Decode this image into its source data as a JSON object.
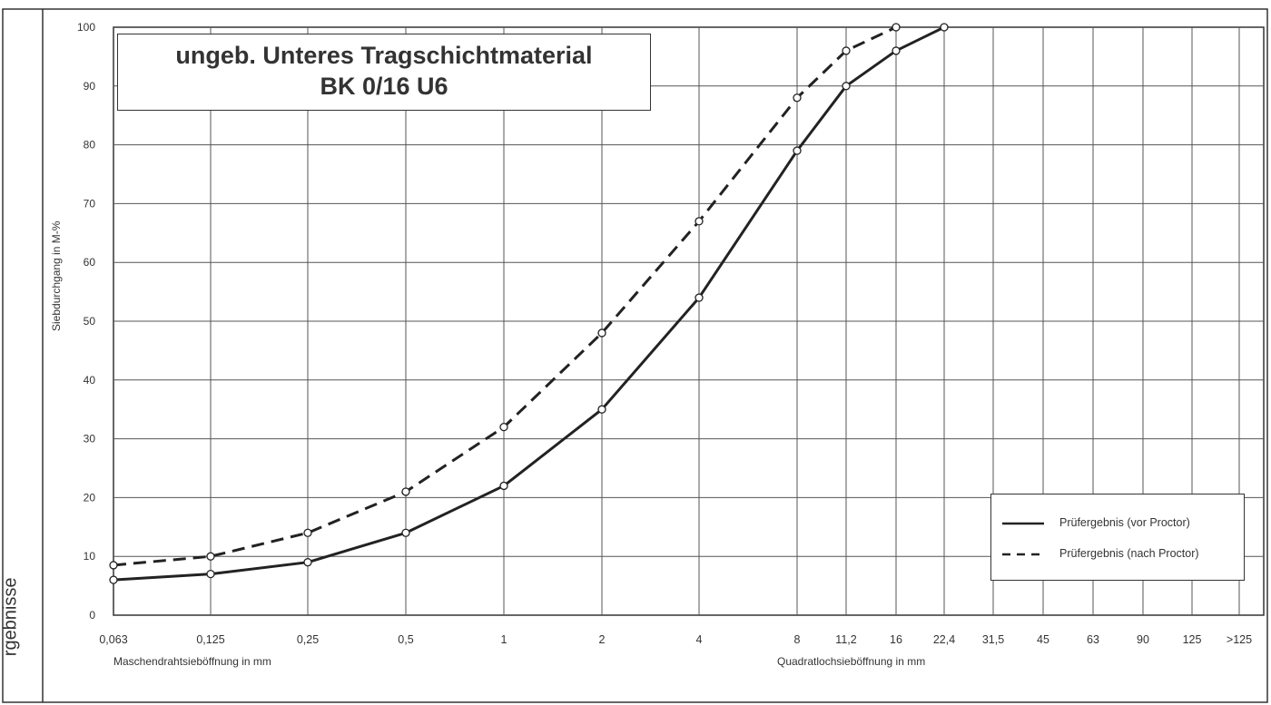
{
  "side_label": "rgebnisse",
  "chart_data": {
    "type": "line",
    "title": "ungeb. Unteres Tragschichtmaterial",
    "subtitle": "BK 0/16 U6",
    "ylabel": "Siebdurchgang in M-%",
    "xlabel_left": "Maschendrahtsieböffnung in mm",
    "xlabel_right": "Quadratlochsieböffnung in mm",
    "ylim": [
      0,
      100
    ],
    "yticks": [
      "0",
      "10",
      "20",
      "30",
      "40",
      "50",
      "60",
      "70",
      "80",
      "90",
      "100"
    ],
    "categories": [
      "0,063",
      "0,125",
      "0,25",
      "0,5",
      "1",
      "2",
      "4",
      "8",
      "11,2",
      "16",
      "22,4",
      "31,5",
      "45",
      "63",
      "90",
      "125",
      ">125"
    ],
    "grid": true,
    "legend_position": "bottom-right",
    "series": [
      {
        "name": "Prüfergebnis (vor Proctor)",
        "style": "solid",
        "x": [
          "0,063",
          "0,125",
          "0,25",
          "0,5",
          "1",
          "2",
          "4",
          "8",
          "11,2",
          "16",
          "22,4"
        ],
        "values": [
          6,
          7,
          9,
          14,
          22,
          35,
          54,
          79,
          90,
          96,
          100
        ]
      },
      {
        "name": "Prüfergebnis (nach Proctor)",
        "style": "dashed",
        "x": [
          "0,063",
          "0,125",
          "0,25",
          "0,5",
          "1",
          "2",
          "4",
          "8",
          "11,2",
          "16"
        ],
        "values": [
          8.5,
          10,
          14,
          21,
          32,
          48,
          67,
          88,
          96,
          100
        ]
      }
    ]
  },
  "colors": {
    "line": "#222222",
    "grid": "#555555",
    "frame": "#333333"
  }
}
